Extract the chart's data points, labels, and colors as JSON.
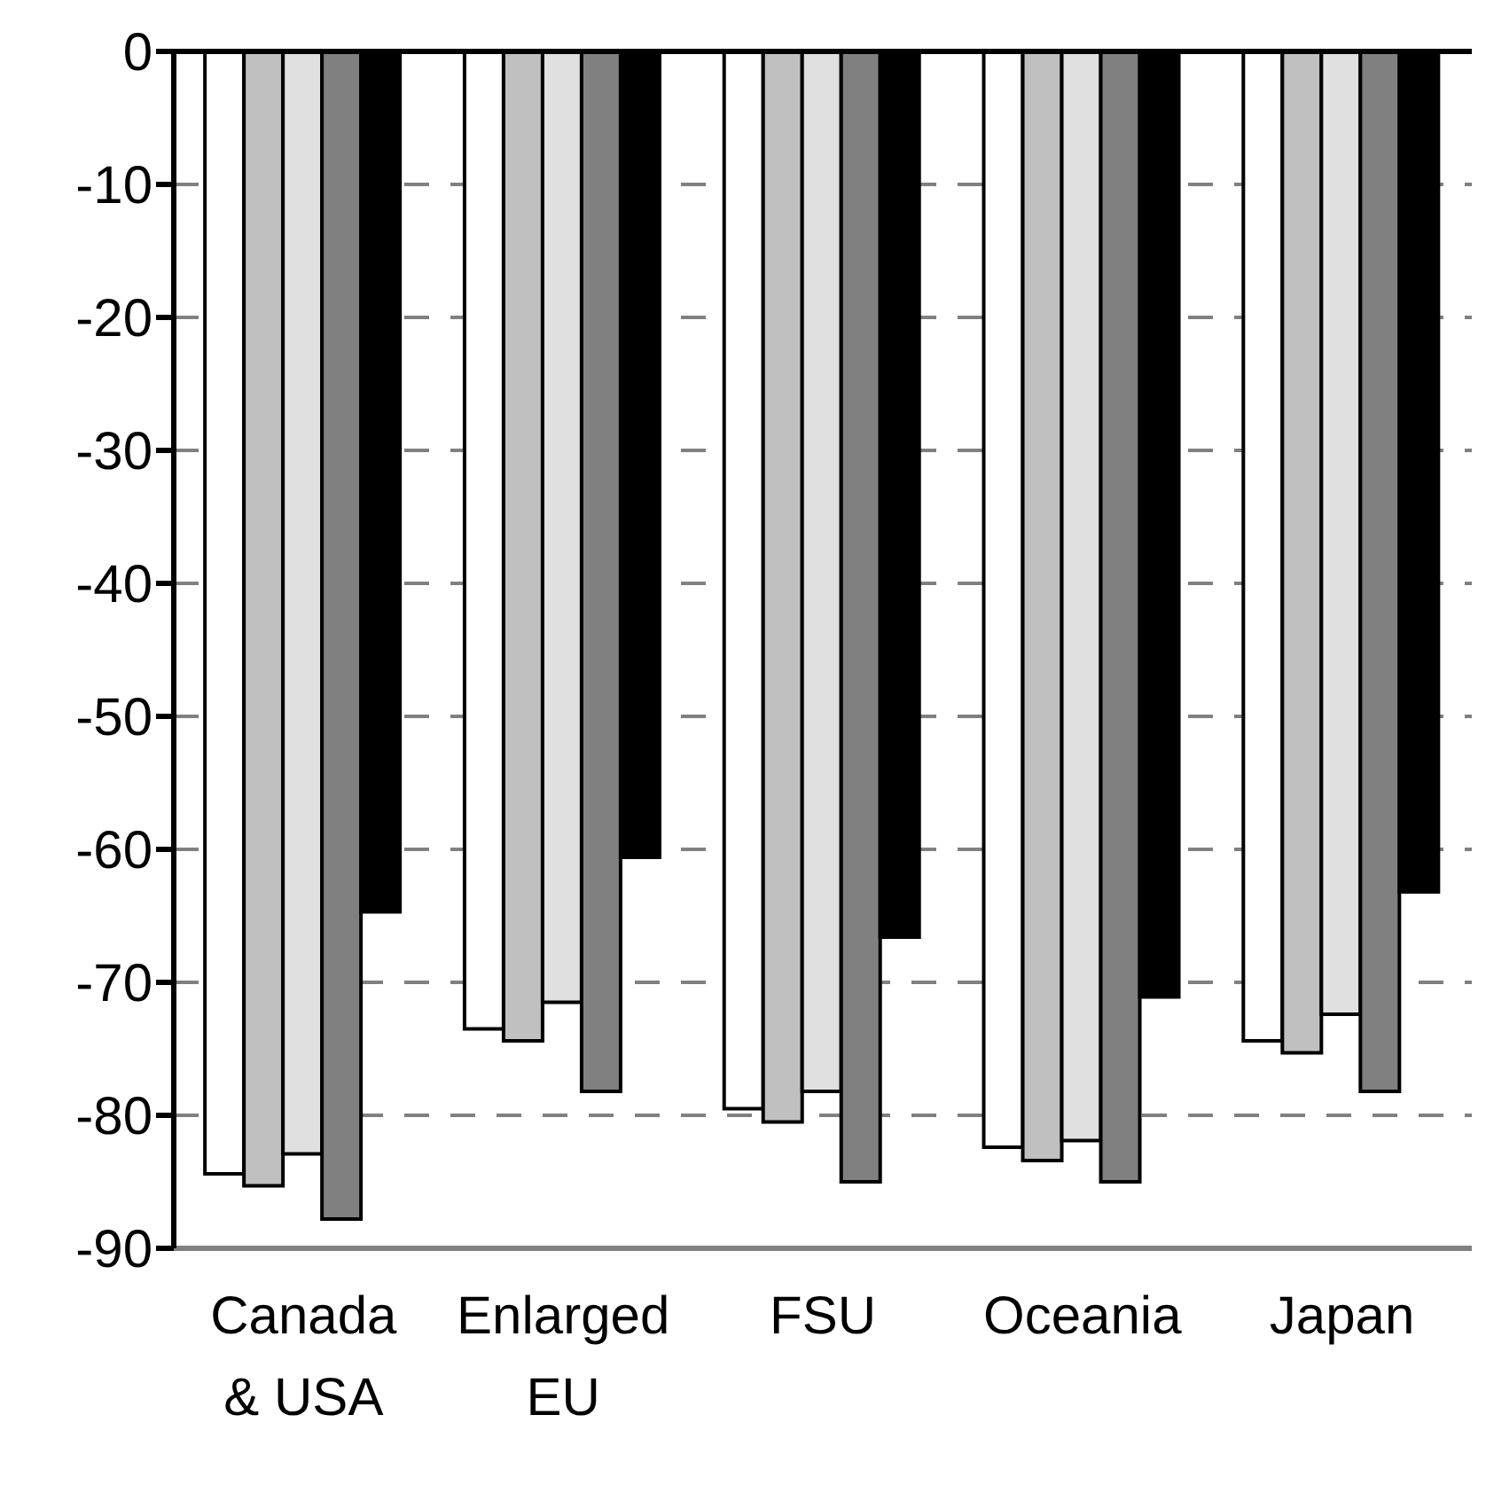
{
  "chart_data": {
    "type": "bar",
    "categories": [
      "Canada & USA",
      "Enlarged EU",
      "FSU",
      "Oceania",
      "Japan"
    ],
    "series": [
      {
        "color": "#ffffff",
        "values": [
          -84.4,
          -73.5,
          -79.5,
          -82.4,
          -74.4
        ]
      },
      {
        "color": "#c0c0c0",
        "values": [
          -85.3,
          -74.4,
          -80.5,
          -83.4,
          -75.3
        ]
      },
      {
        "color": "#e0e0e0",
        "values": [
          -82.9,
          -71.5,
          -78.2,
          -81.9,
          -72.4
        ]
      },
      {
        "color": "#808080",
        "values": [
          -87.8,
          -78.2,
          -85.0,
          -85.0,
          -78.2
        ]
      },
      {
        "color": "#000000",
        "values": [
          -64.7,
          -60.6,
          -66.6,
          -71.1,
          -63.2
        ]
      }
    ],
    "ylim": [
      -90,
      0
    ],
    "yticks": [
      0,
      -10,
      -20,
      -30,
      -40,
      -50,
      -60,
      -70,
      -80,
      -90
    ],
    "grid": "y",
    "legend": false
  }
}
